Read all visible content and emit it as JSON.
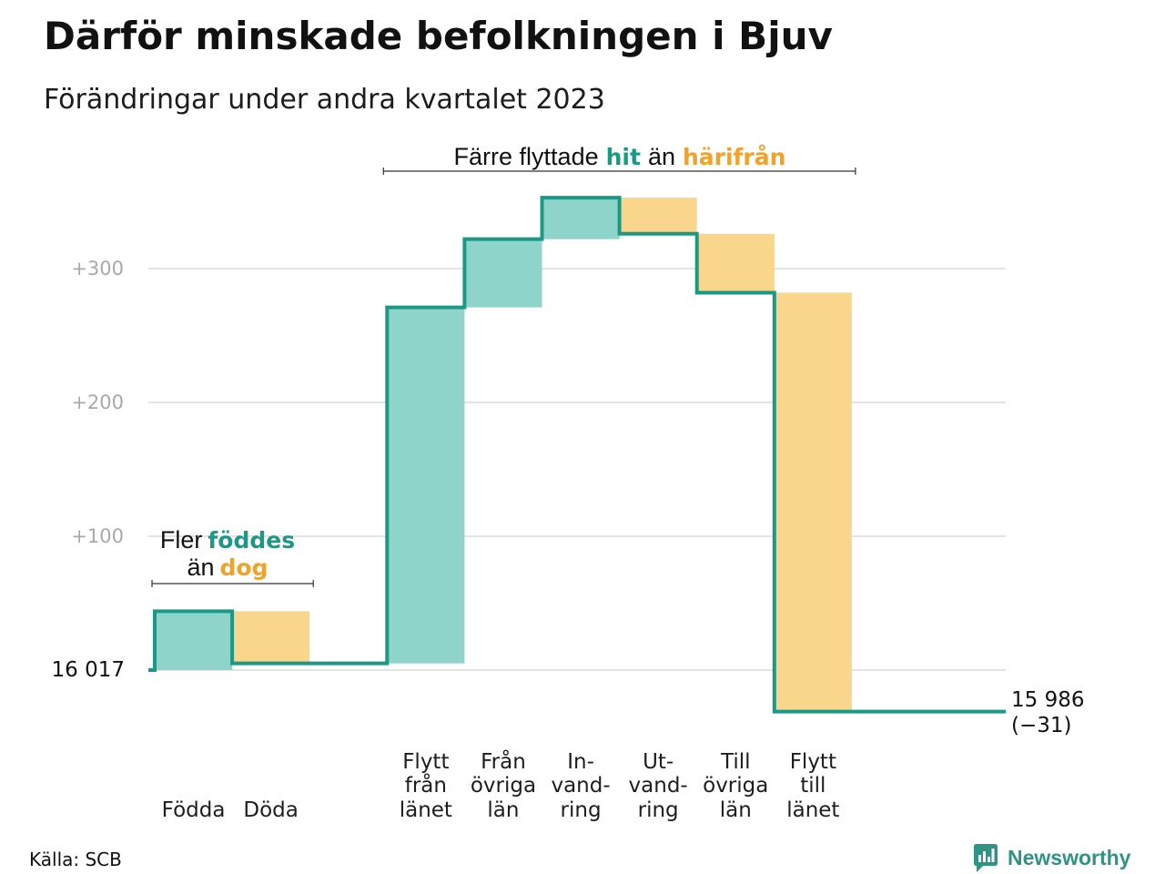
{
  "chart_data": {
    "type": "bar",
    "waterfall": true,
    "title": "Därför minskade befolkningen i Bjuv",
    "subtitle": "Förändringar under andra kvartalet 2023",
    "categories": [
      "Födda",
      "Döda",
      "Flytt\nfrån\nlänet",
      "Från\növriga\nlän",
      "In-\nvand-\nring",
      "Ut-\nvand-\nring",
      "Till\növriga\nlän",
      "Flytt\ntill\nlänet"
    ],
    "values": [
      44,
      -39,
      266,
      51,
      31,
      -27,
      -44,
      -313
    ],
    "y_ticks": [
      0,
      100,
      200,
      300
    ],
    "y_tick_labels": [
      "16 017",
      "+100",
      "+200",
      "+300"
    ],
    "ylim": [
      -50,
      380
    ],
    "grid": true,
    "end_labels": [
      "15 986",
      "(−31)"
    ],
    "annotations": {
      "births": {
        "line1": "Fler",
        "line1_highlight": "föddes",
        "line2": "än",
        "line2_highlight": "dog"
      },
      "migration": {
        "text": "Färre flyttade",
        "highlight_in": "hit",
        "middle": "än",
        "highlight_out": "härifrån"
      }
    }
  },
  "source": "Källa: SCB",
  "logo": {
    "name": "Newsworthy",
    "icon": "bar-chart-speech-bubble-icon"
  },
  "colors": {
    "increase_fill": "#8ed4cb",
    "decrease_fill": "#fad58c",
    "line": "#1b9886",
    "increase_text": "#1b9886",
    "decrease_text": "#f2a22a",
    "grid": "#e4e4e4",
    "tick_text": "#a9a9a9",
    "bracket": "#333333",
    "logo": "#2f9484"
  }
}
